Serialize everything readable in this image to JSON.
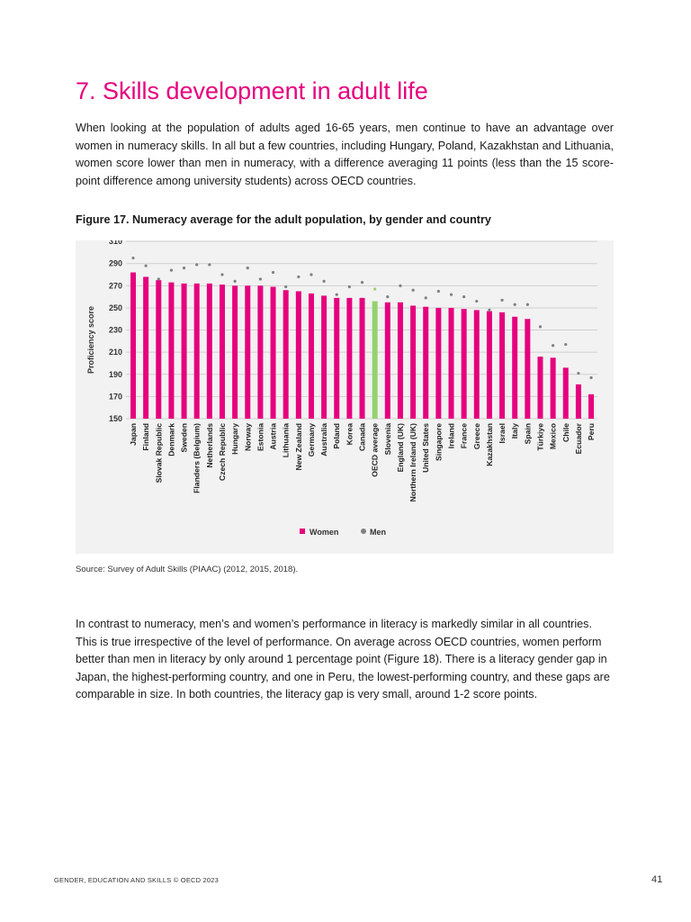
{
  "section_title": "7.  Skills development in adult life",
  "paragraph1": "When looking at the population of adults aged 16-65 years, men continue to have an advantage over women in numeracy skills. In all but a few countries, including Hungary, Poland, Kazakhstan and Lithuania, women score lower than men in numeracy, with a difference averaging 11 points (less than the 15 score-point difference among university students) across OECD countries.",
  "figure_caption": "Figure 17. Numeracy average for the adult population, by gender and country",
  "chart_data": {
    "type": "bar",
    "title": "",
    "xlabel": "",
    "ylabel": "Proficiency score",
    "ylim": [
      150,
      310
    ],
    "yticks": [
      150,
      170,
      190,
      210,
      230,
      250,
      270,
      290,
      310
    ],
    "grid": true,
    "legend_placement": "bottom",
    "categories": [
      "Japan",
      "Finland",
      "Slovak Republic",
      "Denmark",
      "Sweden",
      "Flanders (Belgium)",
      "Netherlands",
      "Czech Republic",
      "Hungary",
      "Norway",
      "Estonia",
      "Austria",
      "Lithuania",
      "New Zealand",
      "Germany",
      "Australia",
      "Poland",
      "Korea",
      "Canada",
      "OECD average",
      "Slovenia",
      "England (UK)",
      "Northern Ireland (UK)",
      "United States",
      "Singapore",
      "Ireland",
      "France",
      "Greece",
      "Kazakhstan",
      "Israel",
      "Italy",
      "Spain",
      "Türkiye",
      "Mexico",
      "Chile",
      "Ecuador",
      "Peru"
    ],
    "highlight_category": "OECD average",
    "series": [
      {
        "name": "Women",
        "mark": "bar",
        "color": "#e6007e",
        "values": [
          282,
          278,
          275,
          273,
          272,
          272,
          272,
          271,
          270,
          270,
          270,
          269,
          266,
          265,
          263,
          261,
          259,
          259,
          259,
          256,
          255,
          255,
          252,
          251,
          250,
          250,
          249,
          248,
          247,
          246,
          242,
          240,
          206,
          205,
          196,
          181,
          172
        ]
      },
      {
        "name": "Men",
        "mark": "point",
        "color": "#808080",
        "values": [
          295,
          288,
          276,
          284,
          286,
          289,
          289,
          280,
          274,
          286,
          276,
          282,
          269,
          278,
          280,
          274,
          262,
          269,
          273,
          267,
          260,
          270,
          266,
          259,
          265,
          262,
          260,
          256,
          248,
          257,
          253,
          253,
          233,
          216,
          217,
          191,
          187
        ]
      }
    ],
    "highlight_colors": {
      "bar": "#92d36e",
      "point": "#92d36e"
    }
  },
  "source": "Source: Survey of Adult Skills (PIAAC) (2012, 2015, 2018).",
  "paragraph2": "In contrast to numeracy, men’s and women’s performance in literacy is markedly similar in all countries. This is true irrespective of the level of performance. On average across OECD countries, women perform better than men in literacy by only around 1 percentage point (Figure 18). There is a literacy gender gap in Japan, the highest-performing country, and one in Peru, the lowest-performing country, and these gaps are comparable in size. In both countries, the literacy gap is very small, around 1-2 score points.",
  "footer": "GENDER, EDUCATION AND SKILLS © OECD 2023",
  "page_number": "41"
}
